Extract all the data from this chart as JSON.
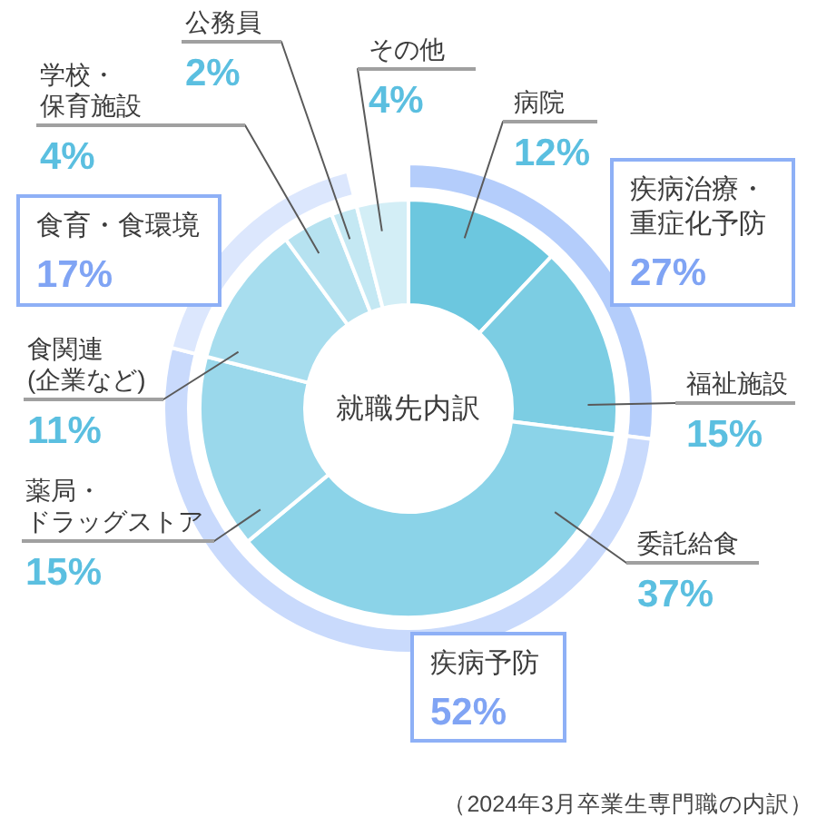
{
  "chart_data": [
    {
      "type": "donut",
      "title": "就職先内訳",
      "categories": [
        "病院",
        "福祉施設",
        "委託給食",
        "薬局・ドラッグストア",
        "食関連(企業など)",
        "学校・保育施設",
        "公務員",
        "その他"
      ],
      "values": [
        12,
        15,
        37,
        15,
        11,
        4,
        2,
        4
      ],
      "colors": [
        "#6cc7df",
        "#7ccde3",
        "#8bd3e8",
        "#9ad8eb",
        "#a7ddee",
        "#b6e2f0",
        "#c4e8f3",
        "#d3eef6"
      ],
      "value_labels": [
        "12%",
        "15%",
        "37%",
        "15%",
        "11%",
        "4%",
        "2%",
        "4%"
      ],
      "annotations": [
        "（2024年3月卒業生専門職の内訳）"
      ]
    },
    {
      "type": "donut",
      "categories": [
        "疾病治療・重症化予防",
        "疾病予防",
        "食育・食環境"
      ],
      "values": [
        27,
        52,
        17
      ],
      "colors": [
        "#b4cdfb",
        "#c9dafc",
        "#dce7fd"
      ],
      "value_labels": [
        "27%",
        "52%",
        "17%"
      ]
    }
  ]
}
